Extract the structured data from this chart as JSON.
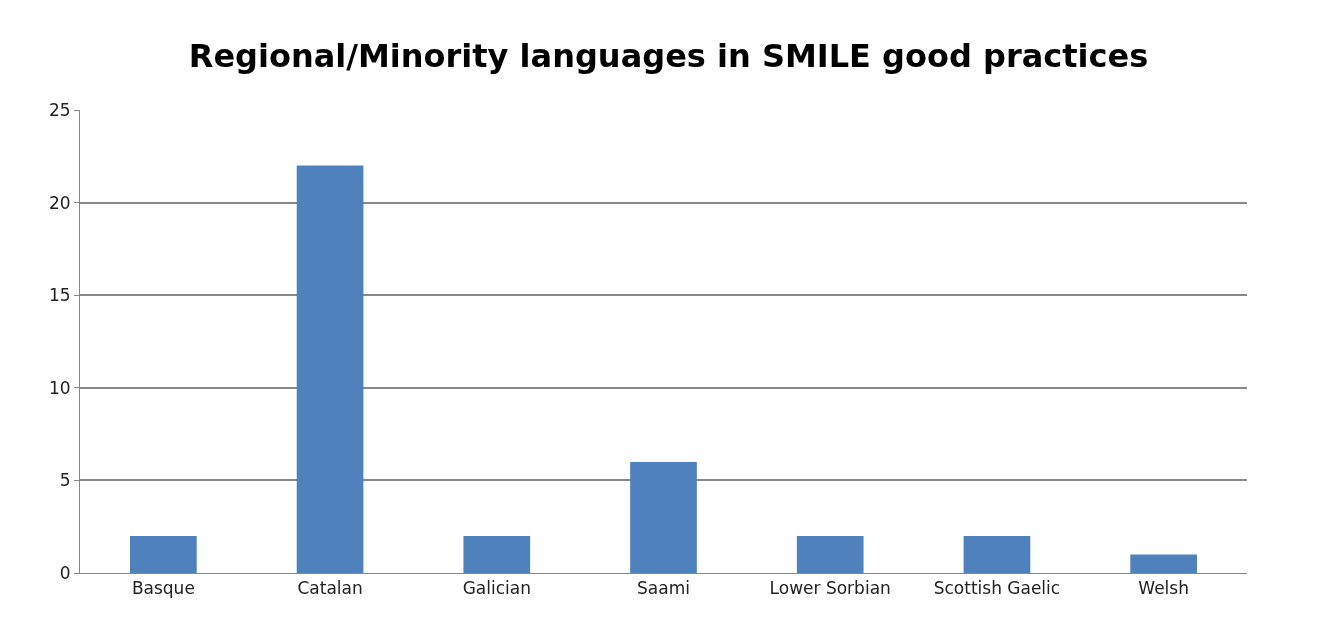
{
  "chart_data": {
    "type": "bar",
    "title": "Regional/Minority languages in SMILE good practices",
    "categories": [
      "Basque",
      "Catalan",
      "Galician",
      "Saami",
      "Lower Sorbian",
      "Scottish Gaelic",
      "Welsh"
    ],
    "values": [
      2,
      22,
      2,
      6,
      2,
      2,
      1
    ],
    "color": "#4f81bd",
    "ylim": [
      0,
      25
    ],
    "yticks": [
      0,
      5,
      10,
      15,
      20,
      25
    ],
    "grid": "y"
  }
}
